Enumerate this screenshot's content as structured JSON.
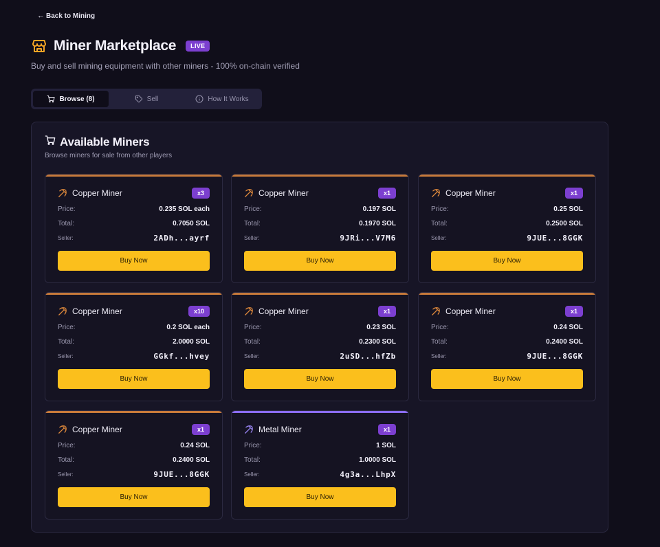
{
  "back_link": "Back to Mining",
  "header": {
    "title": "Miner Marketplace",
    "badge": "LIVE",
    "subtitle": "Buy and sell mining equipment with other miners - 100% on-chain verified"
  },
  "tabs": [
    {
      "label": "Browse (8)",
      "icon": "cart-icon",
      "active": true
    },
    {
      "label": "Sell",
      "icon": "tag-icon",
      "active": false
    },
    {
      "label": "How It Works",
      "icon": "info-icon",
      "active": false
    }
  ],
  "panel": {
    "title": "Available Miners",
    "subtitle": "Browse miners for sale from other players",
    "labels": {
      "price": "Price:",
      "total": "Total:",
      "seller": "Seller:",
      "buy": "Buy Now"
    }
  },
  "colors": {
    "accent": "#fbbf1c",
    "badge": "#7c3fd0",
    "copper": "#c77a3a",
    "metal": "#8a6cf0",
    "background": "#100e1a"
  },
  "listings": [
    {
      "name": "Copper Miner",
      "qty": "x3",
      "price": "0.235 SOL each",
      "total": "0.7050 SOL",
      "seller": "2ADh...ayrf",
      "tier": "copper"
    },
    {
      "name": "Copper Miner",
      "qty": "x1",
      "price": "0.197 SOL",
      "total": "0.1970 SOL",
      "seller": "9JRi...V7M6",
      "tier": "copper"
    },
    {
      "name": "Copper Miner",
      "qty": "x1",
      "price": "0.25 SOL",
      "total": "0.2500 SOL",
      "seller": "9JUE...8GGK",
      "tier": "copper"
    },
    {
      "name": "Copper Miner",
      "qty": "x10",
      "price": "0.2 SOL each",
      "total": "2.0000 SOL",
      "seller": "GGkf...hvey",
      "tier": "copper"
    },
    {
      "name": "Copper Miner",
      "qty": "x1",
      "price": "0.23 SOL",
      "total": "0.2300 SOL",
      "seller": "2uSD...hfZb",
      "tier": "copper"
    },
    {
      "name": "Copper Miner",
      "qty": "x1",
      "price": "0.24 SOL",
      "total": "0.2400 SOL",
      "seller": "9JUE...8GGK",
      "tier": "copper"
    },
    {
      "name": "Copper Miner",
      "qty": "x1",
      "price": "0.24 SOL",
      "total": "0.2400 SOL",
      "seller": "9JUE...8GGK",
      "tier": "copper"
    },
    {
      "name": "Metal Miner",
      "qty": "x1",
      "price": "1 SOL",
      "total": "1.0000 SOL",
      "seller": "4g3a...LhpX",
      "tier": "metal"
    }
  ]
}
